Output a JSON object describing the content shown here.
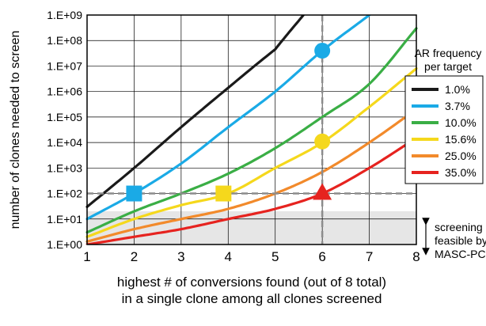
{
  "chart_data": {
    "type": "line",
    "xlabel_line1": "highest # of conversions found (out of 8 total)",
    "xlabel_line2": "in a single clone among all clones screened",
    "ylabel": "number of clones needed to screen",
    "xlim": [
      1,
      8
    ],
    "ylim": [
      1,
      1000000000
    ],
    "y_scale": "log",
    "x_ticks": [
      "1",
      "2",
      "3",
      "4",
      "5",
      "6",
      "7",
      "8"
    ],
    "y_ticks": [
      "1.E+00",
      "1.E+01",
      "1.E+02",
      "1.E+03",
      "1.E+04",
      "1.E+05",
      "1.E+06",
      "1.E+07",
      "1.E+08",
      "1.E+09"
    ],
    "legend": {
      "title_line1": "AR frequency",
      "title_line2": "per target",
      "placement": "right"
    },
    "series": [
      {
        "name": "1.0%",
        "color": "#1a1a1a",
        "x": [
          1,
          2,
          3,
          4,
          5,
          5.6
        ],
        "y": [
          30,
          1000,
          40000,
          1400000,
          45000000,
          1000000000
        ]
      },
      {
        "name": "3.7%",
        "color": "#1aaae6",
        "x": [
          1,
          2,
          3,
          4,
          5,
          6,
          7
        ],
        "y": [
          10,
          100,
          1500,
          40000,
          1000000,
          40000000,
          1000000000
        ]
      },
      {
        "name": "10.0%",
        "color": "#3aae45",
        "x": [
          1,
          2,
          3,
          4,
          5,
          6,
          7,
          8
        ],
        "y": [
          3,
          20,
          100,
          600,
          6000,
          100000,
          2000000,
          300000000
        ]
      },
      {
        "name": "15.6%",
        "color": "#f5d81c",
        "x": [
          1,
          2,
          3,
          4,
          5,
          6,
          7,
          8
        ],
        "y": [
          2,
          10,
          35,
          100,
          1000,
          10000,
          250000,
          8000000
        ]
      },
      {
        "name": "25.0%",
        "color": "#f28a2b",
        "x": [
          1,
          2,
          3,
          4,
          5,
          6,
          7,
          8
        ],
        "y": [
          1.3,
          4,
          10,
          25,
          100,
          700,
          10000,
          200000
        ]
      },
      {
        "name": "35.0%",
        "color": "#e6231f",
        "x": [
          1,
          2,
          3,
          4,
          5,
          6,
          7,
          8
        ],
        "y": [
          1,
          2,
          4,
          10,
          25,
          100,
          1000,
          15000
        ]
      }
    ],
    "markers": [
      {
        "shape": "square",
        "x": 2,
        "y": 100,
        "color": "#1aaae6"
      },
      {
        "shape": "square",
        "x": 3.9,
        "y": 100,
        "color": "#f5d81c"
      },
      {
        "shape": "circle",
        "x": 6,
        "y": 40000000,
        "color": "#1aaae6"
      },
      {
        "shape": "circle",
        "x": 6,
        "y": 11000,
        "color": "#f5d81c"
      },
      {
        "shape": "triangle",
        "x": 6,
        "y": 100,
        "color": "#e6231f"
      }
    ],
    "threshold": {
      "y": 100,
      "x": 6
    },
    "annotation": [
      "screening",
      "feasible by",
      "MASC-PCR"
    ]
  }
}
